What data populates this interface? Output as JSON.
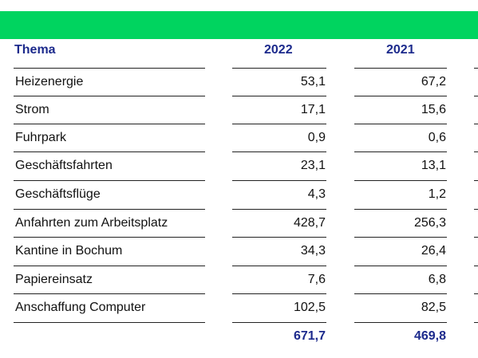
{
  "table": {
    "headers": [
      "Thema",
      "2022",
      "2021"
    ],
    "rows": [
      {
        "label": "Heizenergie",
        "v2022": "53,1",
        "v2021": "67,2"
      },
      {
        "label": "Strom",
        "v2022": "17,1",
        "v2021": "15,6"
      },
      {
        "label": "Fuhrpark",
        "v2022": "0,9",
        "v2021": "0,6"
      },
      {
        "label": "Geschäftsfahrten",
        "v2022": "23,1",
        "v2021": "13,1"
      },
      {
        "label": "Geschäftsflüge",
        "v2022": "4,3",
        "v2021": "1,2"
      },
      {
        "label": "Anfahrten zum Arbeitsplatz",
        "v2022": "428,7",
        "v2021": "256,3"
      },
      {
        "label": "Kantine in Bochum",
        "v2022": "34,3",
        "v2021": "26,4"
      },
      {
        "label": "Papiereinsatz",
        "v2022": "7,6",
        "v2021": "6,8"
      },
      {
        "label": "Anschaffung Computer",
        "v2022": "102,5",
        "v2021": "82,5"
      }
    ],
    "total": {
      "label": "",
      "v2022": "671,7",
      "v2021": "469,8"
    }
  },
  "colors": {
    "band": "#00d45f",
    "header_text": "#1c2a8c",
    "rule": "#222222"
  }
}
